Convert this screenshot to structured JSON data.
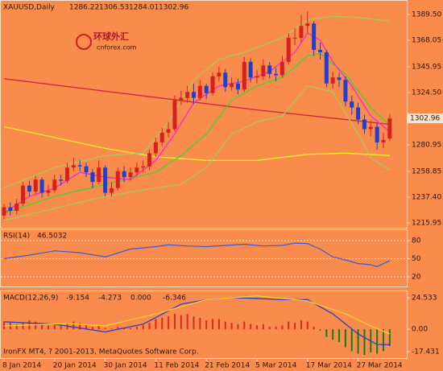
{
  "chart_data": [
    {
      "type": "candlestick",
      "title": "XAUUSD,Daily",
      "categories": [
        "8 Jan 2014",
        null,
        null,
        null,
        null,
        null,
        null,
        null,
        "20 Jan 2014",
        null,
        null,
        null,
        null,
        null,
        null,
        null,
        "30 Jan 2014",
        null,
        null,
        null,
        null,
        null,
        null,
        null,
        "11 Feb 2014",
        null,
        null,
        null,
        null,
        null,
        null,
        null,
        "21 Feb 2014",
        null,
        null,
        null,
        null,
        null,
        null,
        null,
        "5 Mar 2014",
        null,
        null,
        null,
        null,
        null,
        null,
        null,
        "17 Mar 2014",
        null,
        null,
        null,
        null,
        null,
        null,
        null,
        "27 Mar 2014",
        null,
        null,
        null,
        null,
        null
      ],
      "open": [
        1222,
        1229,
        1226,
        1232,
        1247,
        1242,
        1252,
        1241,
        1243,
        1252,
        1251,
        1262,
        1264,
        1263,
        1258,
        1250,
        1262,
        1241,
        1245,
        1259,
        1254,
        1258,
        1262,
        1263,
        1274,
        1283,
        1291,
        1294,
        1318,
        1320,
        1325,
        1320,
        1330,
        1324,
        1338,
        1341,
        1329,
        1332,
        1327,
        1350,
        1337,
        1338,
        1347,
        1340,
        1339,
        1350,
        1370,
        1370,
        1380,
        1382,
        1360,
        1358,
        1332,
        1337,
        1335,
        1317,
        1312,
        1302,
        1294,
        1296,
        1283,
        1286.22
      ],
      "high": [
        1232,
        1233,
        1236,
        1250,
        1251,
        1255,
        1254,
        1248,
        1256,
        1256,
        1266,
        1270,
        1268,
        1266,
        1261,
        1268,
        1264,
        1250,
        1262,
        1263,
        1262,
        1266,
        1268,
        1277,
        1287,
        1295,
        1300,
        1322,
        1326,
        1330,
        1332,
        1335,
        1332,
        1341,
        1346,
        1344,
        1337,
        1336,
        1354,
        1353,
        1343,
        1352,
        1350,
        1345,
        1355,
        1374,
        1378,
        1389,
        1392,
        1384,
        1366,
        1360,
        1342,
        1341,
        1338,
        1322,
        1316,
        1306,
        1301,
        1299,
        1291,
        1306.53
      ],
      "low": [
        1219,
        1222,
        1223,
        1230,
        1238,
        1240,
        1237,
        1238,
        1241,
        1247,
        1249,
        1259,
        1259,
        1254,
        1245,
        1248,
        1238,
        1238,
        1243,
        1250,
        1251,
        1255,
        1258,
        1260,
        1271,
        1280,
        1287,
        1292,
        1314,
        1316,
        1315,
        1318,
        1319,
        1322,
        1334,
        1325,
        1326,
        1323,
        1325,
        1333,
        1332,
        1335,
        1336,
        1334,
        1337,
        1348,
        1364,
        1366,
        1374,
        1355,
        1352,
        1329,
        1328,
        1329,
        1313,
        1306,
        1298,
        1290,
        1288,
        1277,
        1278,
        1284.01
      ],
      "close": [
        1229,
        1226,
        1232,
        1247,
        1242,
        1252,
        1241,
        1243,
        1252,
        1251,
        1262,
        1264,
        1263,
        1258,
        1250,
        1262,
        1241,
        1245,
        1259,
        1254,
        1258,
        1262,
        1263,
        1274,
        1283,
        1291,
        1294,
        1318,
        1320,
        1325,
        1320,
        1330,
        1324,
        1338,
        1341,
        1329,
        1332,
        1327,
        1350,
        1337,
        1338,
        1347,
        1340,
        1339,
        1350,
        1370,
        1370,
        1380,
        1382,
        1360,
        1358,
        1332,
        1337,
        1335,
        1317,
        1312,
        1302,
        1294,
        1296,
        1283,
        1285,
        1302.96
      ],
      "up_color": "#d8201c",
      "down_color": "#1f3fd0",
      "lines": [
        {
          "color": "#c8283a",
          "x": [
            0,
            20,
            40,
            61
          ],
          "values": [
            1336,
            1323,
            1310,
            1298
          ]
        },
        {
          "color": "#f4ee2a",
          "x": [
            0,
            8,
            16,
            24,
            32,
            40,
            48,
            54,
            61
          ],
          "values": [
            1296,
            1287,
            1278,
            1271,
            1268,
            1268,
            1273,
            1274,
            1272
          ]
        },
        {
          "color": "#a8c85a",
          "x": [
            0,
            8,
            16,
            22,
            26,
            30,
            34,
            38,
            44,
            48,
            52,
            56,
            61
          ],
          "values": [
            1245,
            1262,
            1272,
            1274,
            1300,
            1335,
            1352,
            1358,
            1370,
            1385,
            1388,
            1387,
            1384
          ]
        },
        {
          "color": "#a8c85a",
          "x": [
            0,
            8,
            16,
            24,
            28,
            32,
            36,
            40,
            44,
            48,
            52,
            56,
            58,
            61
          ],
          "values": [
            1218,
            1228,
            1238,
            1245,
            1248,
            1262,
            1290,
            1300,
            1305,
            1330,
            1325,
            1290,
            1270,
            1260
          ]
        },
        {
          "color": "#3ed62a",
          "x": [
            0,
            8,
            16,
            24,
            28,
            32,
            36,
            40,
            44,
            48,
            50,
            54,
            58,
            61
          ],
          "values": [
            1224,
            1238,
            1248,
            1258,
            1272,
            1290,
            1318,
            1330,
            1337,
            1355,
            1357,
            1340,
            1312,
            1297
          ]
        },
        {
          "color": "#f22ad0",
          "x": [
            0,
            4,
            8,
            12,
            16,
            20,
            24,
            27,
            30,
            34,
            38,
            42,
            46,
            48,
            50,
            52,
            55,
            58,
            61
          ],
          "values": [
            1224,
            1238,
            1245,
            1258,
            1254,
            1252,
            1268,
            1290,
            1316,
            1330,
            1334,
            1342,
            1358,
            1374,
            1368,
            1350,
            1330,
            1305,
            1292
          ]
        }
      ],
      "ylim": [
        1211.9,
        1400.2
      ],
      "yticks": [
        {
          "value": 1389.5,
          "label": "1389.50"
        },
        {
          "value": 1368.05,
          "label": "1368.05"
        },
        {
          "value": 1345.95,
          "label": "1345.95"
        },
        {
          "value": 1324.5,
          "label": "1324.50"
        },
        {
          "value": 1280.95,
          "label": "1280.95"
        },
        {
          "value": 1258.85,
          "label": "1258.85"
        },
        {
          "value": 1237.4,
          "label": "1237.40"
        },
        {
          "value": 1215.95,
          "label": "1215.95"
        }
      ]
    },
    {
      "type": "line",
      "title": "RSI(14)",
      "color": "#3a5ad8",
      "x": [
        0,
        4,
        8,
        12,
        16,
        20,
        24,
        26,
        29,
        32,
        35,
        38,
        41,
        44,
        46,
        48,
        50,
        52,
        54,
        56,
        58,
        59,
        61
      ],
      "values": [
        50,
        56,
        63,
        60,
        53,
        66,
        70,
        73,
        71,
        70,
        72,
        74,
        71,
        72,
        76,
        75,
        66,
        53,
        48,
        42,
        40,
        37,
        46.5032
      ],
      "ylim": [
        4,
        97.3
      ],
      "yticks": [
        80,
        50,
        20
      ]
    },
    {
      "type": "macd",
      "title": "MACD(12,26,9)",
      "readouts": [
        -9.154,
        -4.273,
        {
          "value": 0,
          "label": "0.000"
        },
        -6.346
      ],
      "values": [
        6,
        5,
        4,
        5,
        7,
        6,
        4,
        3,
        4,
        3,
        5,
        6,
        5,
        4,
        2,
        3,
        1,
        0.5,
        2,
        1,
        1,
        2,
        3,
        5,
        8,
        9,
        10,
        12,
        11,
        12,
        10,
        9,
        7,
        8,
        8,
        6,
        5,
        4,
        6,
        4,
        3,
        4,
        2,
        2,
        3,
        6,
        5,
        7,
        6,
        2,
        -1,
        -6,
        -8,
        -10,
        -14,
        -17,
        -19,
        -20,
        -18,
        -19,
        -17,
        -13
      ],
      "up_color": "#e3271c",
      "down_color": "#1a7a1a",
      "lines": [
        {
          "color": "#2a3cc8",
          "x": [
            0,
            8,
            16,
            22,
            28,
            32,
            36,
            40,
            44,
            48,
            52,
            56,
            59,
            61
          ],
          "values": [
            5.8,
            4,
            -2,
            4,
            19.5,
            23,
            24.5,
            24,
            23,
            23,
            12,
            -3.6,
            -11.8,
            -12
          ]
        },
        {
          "color": "#f7d02a",
          "x": [
            0,
            10,
            16,
            24,
            32,
            40,
            48,
            54,
            58,
            61
          ],
          "values": [
            2.6,
            4.5,
            2.6,
            12,
            23,
            26,
            22,
            12,
            2.6,
            -3.6
          ]
        }
      ],
      "ylim": [
        -22.44,
        29.54
      ],
      "yticks": [
        24.533,
        {
          "value": 0,
          "label": "0.00"
        },
        -17.431
      ]
    }
  ],
  "watermark": {
    "logo": "环球外汇",
    "site": "cnforex.com",
    "copyright": "IronFX MT4, ? 2001-2013, MetaQuotes Software Corp."
  }
}
